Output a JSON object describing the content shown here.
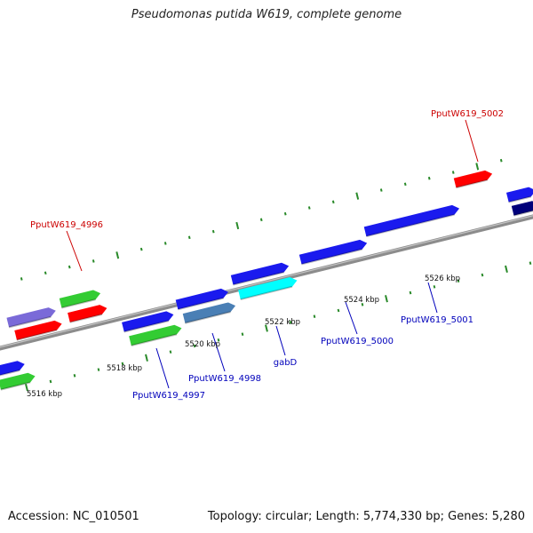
{
  "title": "Pseudomonas putida W619, complete genome",
  "footer": {
    "accession": "Accession: NC_010501",
    "summary": "Topology: circular; Length: 5,774,330 bp; Genes: 5,280"
  },
  "colors": {
    "backbone": "#8c8c8c",
    "tick": "#2a8a2a",
    "label_red": "#cc0000",
    "label_blue": "#0000bb",
    "gene_red": "#ff0000",
    "gene_green": "#33cc33",
    "gene_blue": "#1a1aee",
    "gene_purple": "#7a6ad8",
    "gene_steel": "#4a7fb5",
    "gene_cyan": "#00ffff",
    "gene_navy": "#00007a"
  },
  "scale_labels": [
    "5516 kbp",
    "5518 kbp",
    "5520 kbp",
    "5522 kbp",
    "5524 kbp",
    "5526 kbp"
  ],
  "gene_labels": [
    {
      "id": "PputW619_4996",
      "color": "label_red"
    },
    {
      "id": "PputW619_5002",
      "color": "label_red"
    },
    {
      "id": "PputW619_4997",
      "color": "label_blue"
    },
    {
      "id": "PputW619_4998",
      "color": "label_blue"
    },
    {
      "id": "gabD",
      "color": "label_blue"
    },
    {
      "id": "PputW619_5000",
      "color": "label_blue"
    },
    {
      "id": "PputW619_5001",
      "color": "label_blue"
    }
  ]
}
